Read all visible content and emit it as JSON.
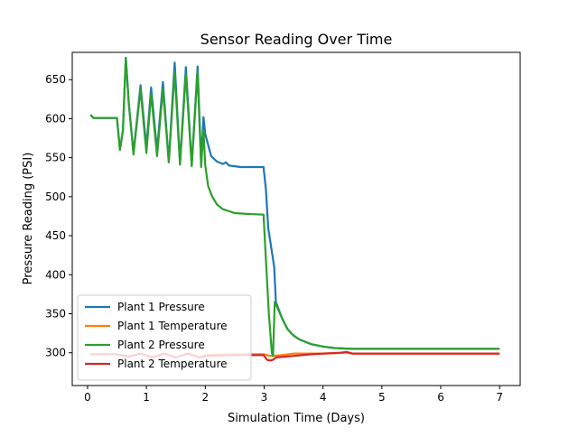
{
  "chart_data": {
    "type": "line",
    "title": "Sensor Reading Over Time",
    "xlabel": "Simulation Time (Days)",
    "ylabel": "Pressure Reading (PSI)",
    "xlim": [
      -0.26,
      7.35
    ],
    "ylim": [
      258,
      685
    ],
    "xticks": [
      0,
      1,
      2,
      3,
      4,
      5,
      6,
      7
    ],
    "yticks": [
      300,
      350,
      400,
      450,
      500,
      550,
      600,
      650
    ],
    "legend_position": "lower-left",
    "grid": false,
    "series": [
      {
        "name": "Plant 1 Pressure",
        "color": "#1f77b4",
        "points": [
          [
            0.05,
            605
          ],
          [
            0.1,
            601
          ],
          [
            0.5,
            601
          ],
          [
            0.55,
            560
          ],
          [
            0.6,
            585
          ],
          [
            0.65,
            678
          ],
          [
            0.7,
            620
          ],
          [
            0.78,
            556
          ],
          [
            0.9,
            643
          ],
          [
            1.0,
            563
          ],
          [
            1.08,
            640
          ],
          [
            1.18,
            559
          ],
          [
            1.28,
            647
          ],
          [
            1.38,
            545
          ],
          [
            1.48,
            672
          ],
          [
            1.57,
            543
          ],
          [
            1.67,
            666
          ],
          [
            1.77,
            541
          ],
          [
            1.87,
            667
          ],
          [
            1.93,
            545
          ],
          [
            1.97,
            602
          ],
          [
            2.0,
            580
          ],
          [
            2.1,
            552
          ],
          [
            2.2,
            545
          ],
          [
            2.3,
            542
          ],
          [
            2.35,
            544
          ],
          [
            2.4,
            540
          ],
          [
            2.6,
            538
          ],
          [
            2.8,
            538
          ],
          [
            2.99,
            538
          ],
          [
            3.03,
            510
          ],
          [
            3.07,
            460
          ],
          [
            3.15,
            420
          ],
          [
            3.17,
            410
          ],
          [
            3.2,
            365
          ],
          [
            3.3,
            345
          ],
          [
            3.4,
            330
          ],
          [
            3.5,
            322
          ],
          [
            3.6,
            317
          ],
          [
            3.8,
            311
          ],
          [
            4.0,
            308
          ],
          [
            4.2,
            306
          ],
          [
            4.5,
            305
          ],
          [
            5.0,
            305
          ],
          [
            6.0,
            305
          ],
          [
            7.0,
            305
          ]
        ]
      },
      {
        "name": "Plant 1 Temperature",
        "color": "#ff7f0e",
        "points": [
          [
            0.05,
            298
          ],
          [
            0.5,
            298
          ],
          [
            0.7,
            295
          ],
          [
            0.9,
            299
          ],
          [
            1.1,
            294
          ],
          [
            1.3,
            299
          ],
          [
            1.5,
            294
          ],
          [
            1.7,
            299
          ],
          [
            1.9,
            294
          ],
          [
            2.0,
            297
          ],
          [
            2.5,
            298
          ],
          [
            3.0,
            298
          ],
          [
            3.1,
            296
          ],
          [
            3.3,
            297
          ],
          [
            3.5,
            299
          ],
          [
            4.0,
            299
          ],
          [
            4.4,
            300
          ],
          [
            4.5,
            299
          ],
          [
            7.0,
            299
          ]
        ]
      },
      {
        "name": "Plant 2 Pressure",
        "color": "#2ca02c",
        "points": [
          [
            0.05,
            605
          ],
          [
            0.1,
            601
          ],
          [
            0.5,
            601
          ],
          [
            0.55,
            560
          ],
          [
            0.6,
            585
          ],
          [
            0.65,
            678
          ],
          [
            0.7,
            620
          ],
          [
            0.78,
            554
          ],
          [
            0.9,
            638
          ],
          [
            1.0,
            556
          ],
          [
            1.08,
            632
          ],
          [
            1.18,
            552
          ],
          [
            1.28,
            638
          ],
          [
            1.38,
            544
          ],
          [
            1.48,
            660
          ],
          [
            1.57,
            541
          ],
          [
            1.67,
            657
          ],
          [
            1.77,
            539
          ],
          [
            1.87,
            660
          ],
          [
            1.93,
            538
          ],
          [
            1.97,
            585
          ],
          [
            2.0,
            540
          ],
          [
            2.05,
            513
          ],
          [
            2.12,
            500
          ],
          [
            2.2,
            490
          ],
          [
            2.3,
            484
          ],
          [
            2.5,
            479
          ],
          [
            2.7,
            478
          ],
          [
            2.99,
            477
          ],
          [
            3.03,
            420
          ],
          [
            3.08,
            350
          ],
          [
            3.13,
            300
          ],
          [
            3.15,
            296
          ],
          [
            3.18,
            365
          ],
          [
            3.2,
            362
          ],
          [
            3.3,
            345
          ],
          [
            3.4,
            330
          ],
          [
            3.5,
            322
          ],
          [
            3.6,
            317
          ],
          [
            3.8,
            311
          ],
          [
            4.0,
            308
          ],
          [
            4.2,
            306
          ],
          [
            4.5,
            305
          ],
          [
            5.0,
            305
          ],
          [
            6.0,
            305
          ],
          [
            7.0,
            305
          ]
        ]
      },
      {
        "name": "Plant 2 Temperature",
        "color": "#d62728",
        "points": [
          [
            0.05,
            298
          ],
          [
            0.5,
            298
          ],
          [
            0.7,
            295
          ],
          [
            0.9,
            299
          ],
          [
            1.1,
            294
          ],
          [
            1.3,
            299
          ],
          [
            1.5,
            294
          ],
          [
            1.7,
            299
          ],
          [
            1.9,
            294
          ],
          [
            2.0,
            296
          ],
          [
            2.5,
            297
          ],
          [
            2.99,
            297
          ],
          [
            3.05,
            291
          ],
          [
            3.1,
            290
          ],
          [
            3.15,
            291
          ],
          [
            3.2,
            294
          ],
          [
            3.5,
            296
          ],
          [
            3.8,
            298
          ],
          [
            4.0,
            299
          ],
          [
            4.3,
            300
          ],
          [
            4.4,
            301
          ],
          [
            4.5,
            299
          ],
          [
            7.0,
            299
          ]
        ]
      }
    ]
  }
}
